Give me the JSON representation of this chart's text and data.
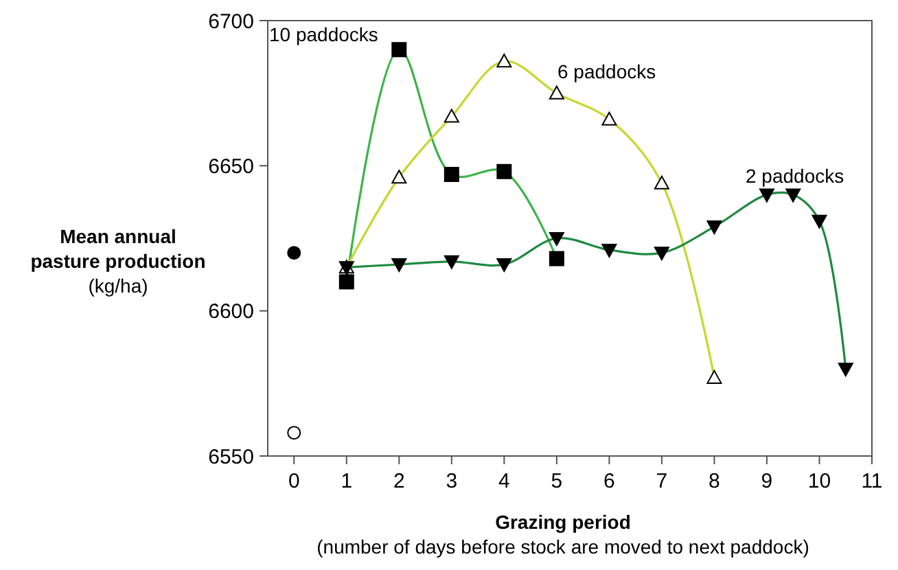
{
  "chart_data": {
    "type": "line",
    "xlabel": "Grazing period\n(number of days before stock are moved to next paddock)",
    "ylabel": "Mean annual\npasture production\n(kg/ha)",
    "xlim": [
      -0.5,
      11
    ],
    "xticks": [
      0,
      1,
      2,
      3,
      4,
      5,
      6,
      7,
      8,
      9,
      10,
      11
    ],
    "ylim": [
      6550,
      6700
    ],
    "yticks": [
      6550,
      6600,
      6650,
      6700
    ],
    "grid": false,
    "legend": false,
    "series": [
      {
        "type": "scatter",
        "color": "#000000",
        "marker": "circle",
        "x": [
          0
        ],
        "values": [
          6620
        ]
      },
      {
        "type": "scatter",
        "color": "#ffffff",
        "marker": "circle",
        "x": [
          0
        ],
        "values": [
          6558
        ]
      },
      {
        "name": "10 paddocks",
        "color": "#3cb44b",
        "marker": "square",
        "x": [
          1,
          2,
          3,
          4,
          5
        ],
        "values": [
          6610,
          6690,
          6647,
          6648,
          6618
        ]
      },
      {
        "name": "6 paddocks",
        "color": "#c3d92f",
        "marker": "triangle",
        "x": [
          1,
          2,
          3,
          4,
          5,
          6,
          7,
          8
        ],
        "values": [
          6615,
          6646,
          6667,
          6686,
          6675,
          6666,
          6644,
          6577
        ]
      },
      {
        "name": "2 paddocks",
        "color": "#1e8a40",
        "marker": "triangle-down",
        "x": [
          1,
          2,
          3,
          4,
          5,
          6,
          7,
          8,
          9,
          9.5,
          10,
          10.5
        ],
        "values": [
          6615,
          6616,
          6617,
          6616,
          6625,
          6621,
          6620,
          6629,
          6640,
          6640,
          6631,
          6580
        ]
      }
    ]
  }
}
